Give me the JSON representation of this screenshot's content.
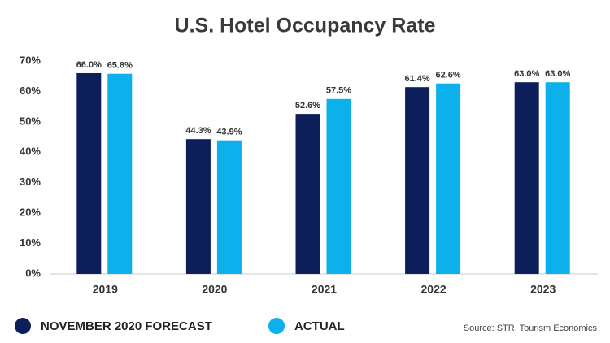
{
  "chart_data": {
    "type": "bar",
    "title": "U.S. Hotel Occupancy Rate",
    "categories": [
      "2019",
      "2020",
      "2021",
      "2022",
      "2023"
    ],
    "series": [
      {
        "name": "NOVEMBER 2020 FORECAST",
        "color": "#0c1f5b",
        "values": [
          66.0,
          44.3,
          52.6,
          61.4,
          63.0
        ],
        "value_labels": [
          "66.0%",
          "44.3%",
          "52.6%",
          "61.4%",
          "63.0%"
        ]
      },
      {
        "name": "ACTUAL",
        "color": "#0cb0ea",
        "values": [
          65.8,
          43.9,
          57.5,
          62.6,
          63.0
        ],
        "value_labels": [
          "65.8%",
          "43.9%",
          "57.5%",
          "62.6%",
          "63.0%"
        ]
      }
    ],
    "ylim": [
      0,
      70
    ],
    "yticks": [
      {
        "value": 0,
        "label": "0%"
      },
      {
        "value": 10,
        "label": "10%"
      },
      {
        "value": 20,
        "label": "20%"
      },
      {
        "value": 30,
        "label": "30%"
      },
      {
        "value": 40,
        "label": "40%"
      },
      {
        "value": 50,
        "label": "50%"
      },
      {
        "value": 60,
        "label": "60%"
      },
      {
        "value": 70,
        "label": "70%"
      }
    ],
    "source": "Source: STR, Tourism Economics"
  }
}
